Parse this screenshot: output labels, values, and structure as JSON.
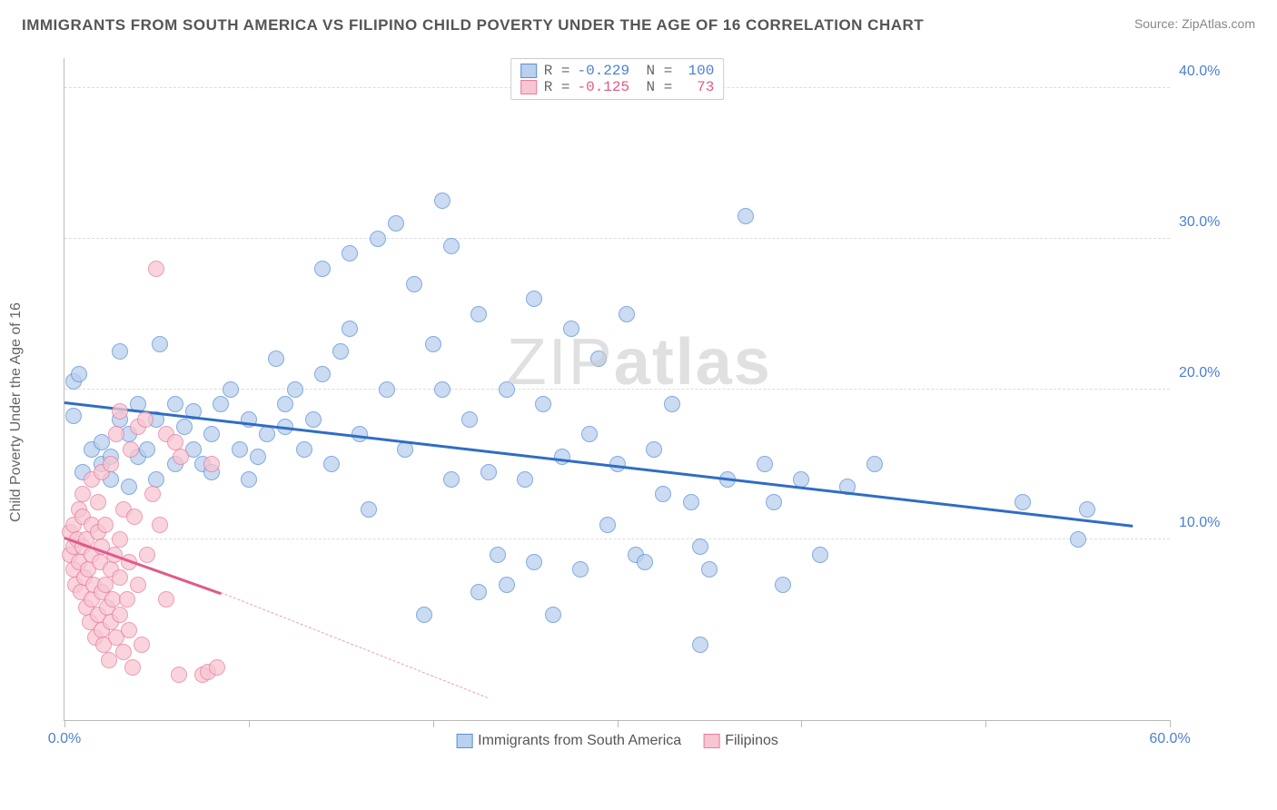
{
  "header": {
    "title": "IMMIGRANTS FROM SOUTH AMERICA VS FILIPINO CHILD POVERTY UNDER THE AGE OF 16 CORRELATION CHART",
    "source_prefix": "Source: ",
    "source_name": "ZipAtlas.com"
  },
  "chart": {
    "type": "scatter",
    "ylabel": "Child Poverty Under the Age of 16",
    "watermark_light": "ZIP",
    "watermark_bold": "atlas",
    "xlim": [
      0,
      60
    ],
    "ylim": [
      -2,
      42
    ],
    "y_gridlines": [
      10,
      20,
      30,
      40
    ],
    "y_tick_labels": [
      "10.0%",
      "20.0%",
      "30.0%",
      "40.0%"
    ],
    "y_tick_color": "#4b7fd4",
    "x_ticks": [
      0,
      10,
      20,
      30,
      40,
      50,
      60
    ],
    "x_axis_labels": [
      {
        "x": 0,
        "text": "0.0%",
        "color": "#4b7fd4"
      },
      {
        "x": 60,
        "text": "60.0%",
        "color": "#4b7fd4"
      }
    ],
    "grid_color": "#dddddd",
    "axis_color": "#bbbbbb",
    "background_color": "#ffffff",
    "legend_top": [
      {
        "swatch_fill": "#b9d0ee",
        "swatch_border": "#5a8fd6",
        "r_label": "R =",
        "r_val": "-0.229",
        "n_label": "N =",
        "n_val": "100",
        "val_color": "#4b7fd4"
      },
      {
        "swatch_fill": "#f7c6d2",
        "swatch_border": "#e87da0",
        "r_label": "R =",
        "r_val": "-0.125",
        "n_label": "N =",
        "n_val": " 73",
        "val_color": "#e05a8a"
      }
    ],
    "legend_bottom": [
      {
        "swatch_fill": "#b9d0ee",
        "swatch_border": "#5a8fd6",
        "label": "Immigrants from South America"
      },
      {
        "swatch_fill": "#f7c6d2",
        "swatch_border": "#e87da0",
        "label": "Filipinos"
      }
    ],
    "series": [
      {
        "name": "Immigrants from South America",
        "marker_fill": "#b9d0ee",
        "marker_border": "#5a8fd6",
        "marker_opacity": 0.75,
        "marker_radius": 9,
        "trend": {
          "x1": 0,
          "y1": 19.2,
          "x2": 58,
          "y2": 11.0,
          "color": "#2f6dc4",
          "width": 3
        },
        "points": [
          [
            0.5,
            20.5
          ],
          [
            0.5,
            18.2
          ],
          [
            0.8,
            21.0
          ],
          [
            1,
            14.5
          ],
          [
            1.5,
            16
          ],
          [
            2,
            15
          ],
          [
            2,
            16.5
          ],
          [
            2.5,
            14
          ],
          [
            2.5,
            15.5
          ],
          [
            3,
            18
          ],
          [
            3,
            22.5
          ],
          [
            3.5,
            13.5
          ],
          [
            3.5,
            17
          ],
          [
            4,
            15.5
          ],
          [
            4,
            19
          ],
          [
            4.5,
            16
          ],
          [
            5,
            14
          ],
          [
            5,
            18
          ],
          [
            5.2,
            23
          ],
          [
            6,
            15
          ],
          [
            6,
            19
          ],
          [
            6.5,
            17.5
          ],
          [
            7,
            16
          ],
          [
            7,
            18.5
          ],
          [
            7.5,
            15
          ],
          [
            8,
            17
          ],
          [
            8,
            14.5
          ],
          [
            8.5,
            19
          ],
          [
            9,
            20
          ],
          [
            9.5,
            16
          ],
          [
            10,
            18
          ],
          [
            10,
            14
          ],
          [
            10.5,
            15.5
          ],
          [
            11,
            17
          ],
          [
            11.5,
            22
          ],
          [
            12,
            17.5
          ],
          [
            12,
            19
          ],
          [
            12.5,
            20
          ],
          [
            13,
            16
          ],
          [
            13.5,
            18
          ],
          [
            14,
            21
          ],
          [
            14,
            28
          ],
          [
            14.5,
            15
          ],
          [
            15,
            22.5
          ],
          [
            15.5,
            24
          ],
          [
            15.5,
            29
          ],
          [
            16,
            17
          ],
          [
            16.5,
            12
          ],
          [
            17,
            30
          ],
          [
            17.5,
            20
          ],
          [
            18,
            31
          ],
          [
            18.5,
            16
          ],
          [
            19,
            27
          ],
          [
            19.5,
            5
          ],
          [
            20,
            23
          ],
          [
            20.5,
            32.5
          ],
          [
            20.5,
            20
          ],
          [
            21,
            14
          ],
          [
            21,
            29.5
          ],
          [
            22,
            18
          ],
          [
            22.5,
            6.5
          ],
          [
            22.5,
            25
          ],
          [
            23,
            14.5
          ],
          [
            23.5,
            9
          ],
          [
            24,
            7
          ],
          [
            24,
            20
          ],
          [
            25,
            14
          ],
          [
            25.5,
            26
          ],
          [
            25.5,
            8.5
          ],
          [
            26,
            19
          ],
          [
            26.5,
            5
          ],
          [
            27,
            15.5
          ],
          [
            27.5,
            24
          ],
          [
            28,
            8
          ],
          [
            28.5,
            17
          ],
          [
            29,
            22
          ],
          [
            29.5,
            11
          ],
          [
            30,
            15
          ],
          [
            30.5,
            25
          ],
          [
            31,
            9
          ],
          [
            31.5,
            8.5
          ],
          [
            32,
            16
          ],
          [
            32.5,
            13
          ],
          [
            33,
            19
          ],
          [
            34,
            12.5
          ],
          [
            34.5,
            3
          ],
          [
            34.5,
            9.5
          ],
          [
            35,
            8
          ],
          [
            36,
            14
          ],
          [
            37,
            31.5
          ],
          [
            38,
            15
          ],
          [
            38.5,
            12.5
          ],
          [
            39,
            7
          ],
          [
            40,
            14
          ],
          [
            41,
            9
          ],
          [
            42.5,
            13.5
          ],
          [
            44,
            15
          ],
          [
            52,
            12.5
          ],
          [
            55,
            10
          ],
          [
            55.5,
            12
          ]
        ]
      },
      {
        "name": "Filipinos",
        "marker_fill": "#f7c6d2",
        "marker_border": "#e87da0",
        "marker_opacity": 0.75,
        "marker_radius": 9,
        "trend": {
          "x1": 0,
          "y1": 10.2,
          "x2": 8.5,
          "y2": 6.5,
          "color": "#e05a8a",
          "width": 3
        },
        "trend_dash": {
          "x1": 8.5,
          "y1": 6.5,
          "x2": 23,
          "y2": -0.5,
          "color": "#e8a0b8"
        },
        "points": [
          [
            0.3,
            9
          ],
          [
            0.3,
            10.5
          ],
          [
            0.5,
            8
          ],
          [
            0.5,
            9.5
          ],
          [
            0.5,
            11
          ],
          [
            0.6,
            7
          ],
          [
            0.7,
            10
          ],
          [
            0.8,
            8.5
          ],
          [
            0.8,
            12
          ],
          [
            0.9,
            6.5
          ],
          [
            1,
            9.5
          ],
          [
            1,
            11.5
          ],
          [
            1,
            13
          ],
          [
            1.1,
            7.5
          ],
          [
            1.2,
            10
          ],
          [
            1.2,
            5.5
          ],
          [
            1.3,
            8
          ],
          [
            1.4,
            4.5
          ],
          [
            1.5,
            9
          ],
          [
            1.5,
            6
          ],
          [
            1.5,
            11
          ],
          [
            1.5,
            14
          ],
          [
            1.6,
            7
          ],
          [
            1.7,
            3.5
          ],
          [
            1.8,
            10.5
          ],
          [
            1.8,
            5
          ],
          [
            1.8,
            12.5
          ],
          [
            1.9,
            8.5
          ],
          [
            2,
            4
          ],
          [
            2,
            6.5
          ],
          [
            2,
            9.5
          ],
          [
            2,
            14.5
          ],
          [
            2.1,
            3
          ],
          [
            2.2,
            7
          ],
          [
            2.2,
            11
          ],
          [
            2.3,
            5.5
          ],
          [
            2.4,
            2
          ],
          [
            2.5,
            8
          ],
          [
            2.5,
            4.5
          ],
          [
            2.5,
            15
          ],
          [
            2.6,
            6
          ],
          [
            2.7,
            9
          ],
          [
            2.8,
            3.5
          ],
          [
            2.8,
            17
          ],
          [
            3,
            5
          ],
          [
            3,
            7.5
          ],
          [
            3,
            10
          ],
          [
            3,
            18.5
          ],
          [
            3.2,
            2.5
          ],
          [
            3.2,
            12
          ],
          [
            3.4,
            6
          ],
          [
            3.5,
            8.5
          ],
          [
            3.5,
            4
          ],
          [
            3.6,
            16
          ],
          [
            3.7,
            1.5
          ],
          [
            3.8,
            11.5
          ],
          [
            4,
            7
          ],
          [
            4,
            17.5
          ],
          [
            4.2,
            3
          ],
          [
            4.4,
            18
          ],
          [
            4.5,
            9
          ],
          [
            4.8,
            13
          ],
          [
            5,
            28
          ],
          [
            5.2,
            11
          ],
          [
            5.5,
            6
          ],
          [
            5.5,
            17
          ],
          [
            6,
            16.5
          ],
          [
            6.2,
            1
          ],
          [
            6.3,
            15.5
          ],
          [
            7.5,
            1
          ],
          [
            7.8,
            1.2
          ],
          [
            8,
            15
          ],
          [
            8.3,
            1.5
          ]
        ]
      }
    ]
  }
}
